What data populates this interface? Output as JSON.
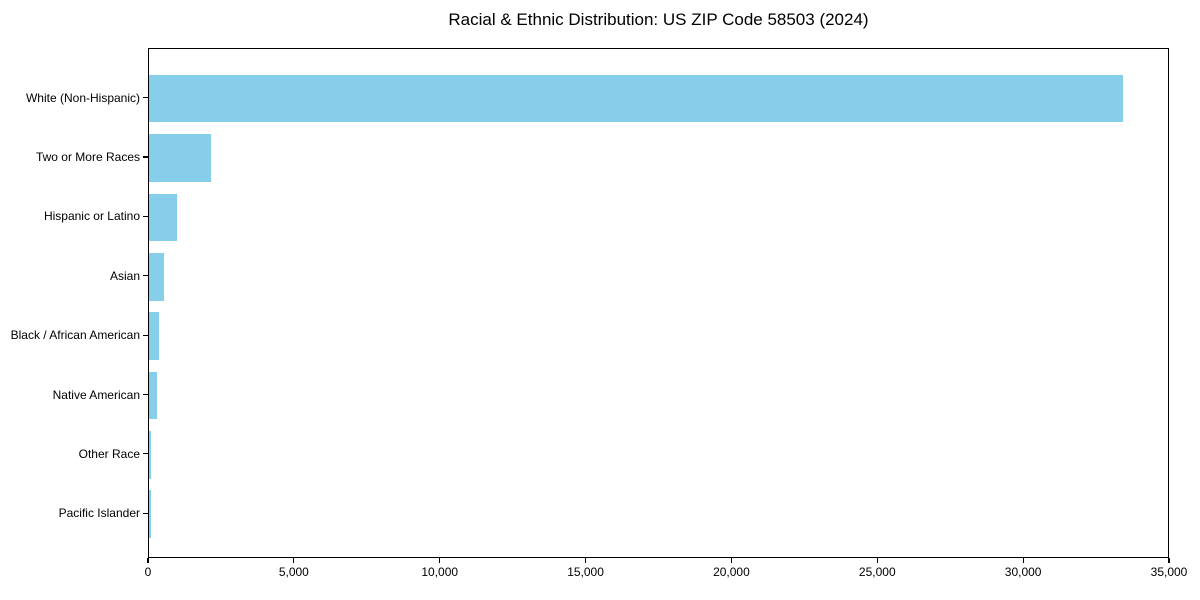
{
  "chart_data": {
    "type": "bar",
    "orientation": "horizontal",
    "title": "Racial & Ethnic Distribution: US ZIP Code 58503 (2024)",
    "xlabel": "",
    "ylabel": "",
    "categories": [
      "White (Non-Hispanic)",
      "Two or More Races",
      "Hispanic or Latino",
      "Asian",
      "Black / African American",
      "Native American",
      "Other Race",
      "Pacific Islander"
    ],
    "values": [
      33400,
      2110,
      950,
      510,
      355,
      280,
      65,
      80
    ],
    "xlim": [
      0,
      35000
    ],
    "xticks": [
      0,
      5000,
      10000,
      15000,
      20000,
      25000,
      30000,
      35000
    ],
    "xtick_labels": [
      "0",
      "5,000",
      "10,000",
      "15,000",
      "20,000",
      "25,000",
      "30,000",
      "35,000"
    ],
    "bar_color": "#87CEEB",
    "axis_color": "#000000",
    "text_color": "#000000",
    "grid": false,
    "legend": "none"
  }
}
